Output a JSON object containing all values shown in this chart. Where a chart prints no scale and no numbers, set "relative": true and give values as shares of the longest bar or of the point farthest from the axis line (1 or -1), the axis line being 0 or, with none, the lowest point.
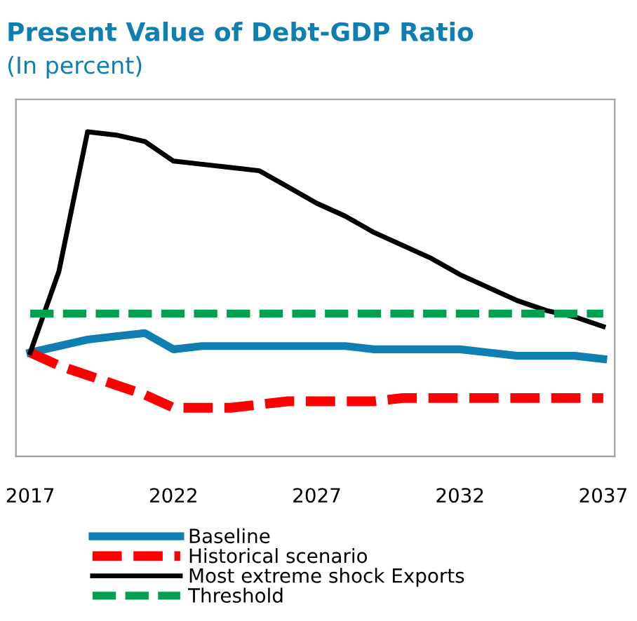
{
  "chart_data": {
    "type": "line",
    "title": "Present Value of Debt-GDP Ratio",
    "subtitle": "(In percent)",
    "relative": true,
    "x": [
      2017,
      2018,
      2019,
      2020,
      2021,
      2022,
      2023,
      2024,
      2025,
      2026,
      2027,
      2028,
      2029,
      2030,
      2031,
      2032,
      2033,
      2034,
      2035,
      2036,
      2037
    ],
    "xlim": [
      2016.5,
      2037.4
    ],
    "xticks": [
      2017,
      2022,
      2027,
      2032,
      2037
    ],
    "series": [
      {
        "name": "Baseline",
        "color": "#0f7fb0",
        "line_style": "solid",
        "values": [
          0.32,
          0.34,
          0.36,
          0.37,
          0.38,
          0.33,
          0.34,
          0.34,
          0.34,
          0.34,
          0.34,
          0.34,
          0.33,
          0.33,
          0.33,
          0.33,
          0.32,
          0.31,
          0.31,
          0.31,
          0.3
        ]
      },
      {
        "name": "Historical scenario",
        "color": "#ff0000",
        "line_style": "dashed",
        "values": [
          0.32,
          0.28,
          0.25,
          0.22,
          0.19,
          0.15,
          0.15,
          0.15,
          0.16,
          0.17,
          0.17,
          0.17,
          0.17,
          0.18,
          0.18,
          0.18,
          0.18,
          0.18,
          0.18,
          0.18,
          0.18
        ]
      },
      {
        "name": "Most extreme shock Exports",
        "color": "#000000",
        "line_style": "solid",
        "values": [
          0.32,
          0.57,
          1.0,
          0.99,
          0.97,
          0.91,
          0.9,
          0.89,
          0.88,
          0.83,
          0.78,
          0.74,
          0.69,
          0.65,
          0.61,
          0.56,
          0.52,
          0.48,
          0.45,
          0.43,
          0.4
        ]
      },
      {
        "name": "Threshold",
        "color": "#00a050",
        "line_style": "dashed",
        "values": [
          0.44,
          0.44,
          0.44,
          0.44,
          0.44,
          0.44,
          0.44,
          0.44,
          0.44,
          0.44,
          0.44,
          0.44,
          0.44,
          0.44,
          0.44,
          0.44,
          0.44,
          0.44,
          0.44,
          0.44,
          0.44
        ]
      }
    ],
    "legend": "bottom",
    "grid": false,
    "marker": "none"
  }
}
